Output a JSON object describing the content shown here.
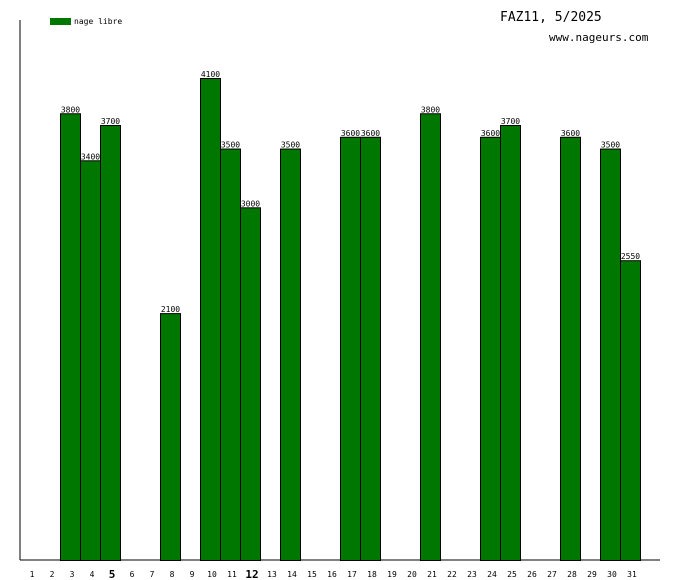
{
  "title": "FAZ11, 5/2025",
  "site": "www.nageurs.com",
  "colors": {
    "bar": "#007700",
    "bar_stroke": "#000000"
  },
  "chart_data": {
    "type": "bar",
    "categories": [
      "1",
      "2",
      "3",
      "4",
      "5",
      "6",
      "7",
      "8",
      "9",
      "10",
      "11",
      "12",
      "13",
      "14",
      "15",
      "16",
      "17",
      "18",
      "19",
      "20",
      "21",
      "22",
      "23",
      "24",
      "25",
      "26",
      "27",
      "28",
      "29",
      "30",
      "31"
    ],
    "highlighted_categories": [
      "5",
      "12"
    ],
    "series": [
      {
        "name": "nage libre",
        "values": [
          null,
          null,
          3800,
          3400,
          3700,
          null,
          null,
          2100,
          null,
          4100,
          3500,
          3000,
          null,
          3500,
          null,
          null,
          3600,
          3600,
          null,
          null,
          3800,
          null,
          null,
          3600,
          3700,
          null,
          null,
          3600,
          null,
          3500,
          2550
        ]
      }
    ],
    "ylim": [
      0,
      4100
    ],
    "legend": "top-left",
    "grid": false
  }
}
